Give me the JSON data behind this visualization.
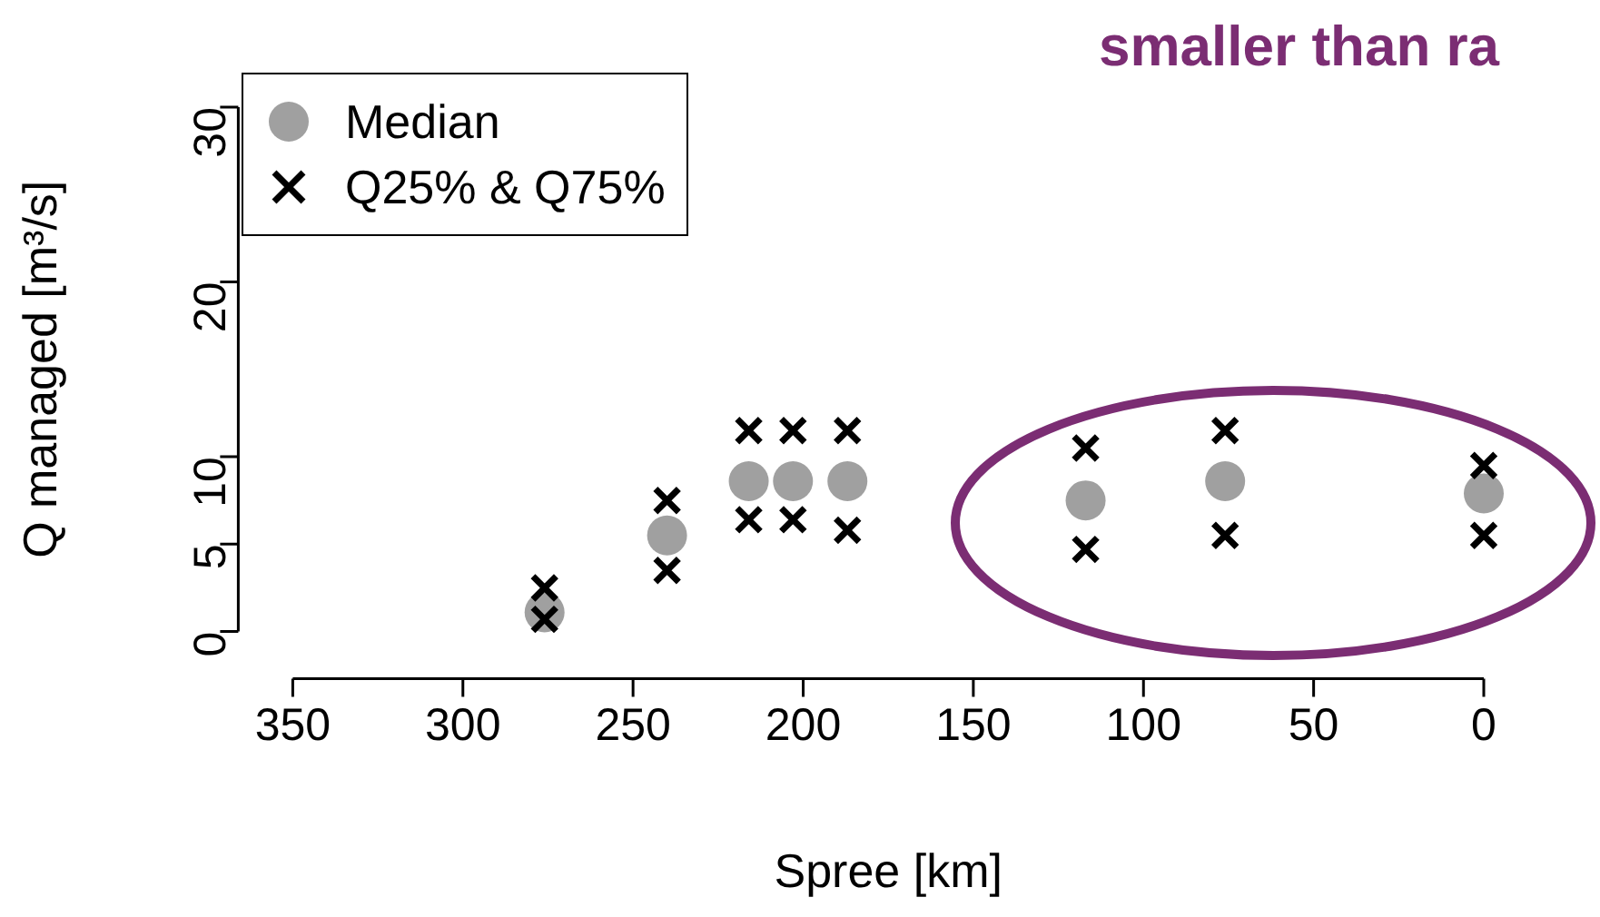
{
  "chart_data": {
    "type": "scatter",
    "xlabel": "Spree [km]",
    "ylabel": "Q managed [m³/s]",
    "annotations": [
      "smaller than ra"
    ],
    "xlim": [
      350,
      0
    ],
    "xticks": [
      350,
      300,
      250,
      200,
      150,
      100,
      50,
      0
    ],
    "ylim": [
      0,
      30
    ],
    "yticks": [
      0,
      5,
      10,
      20,
      30
    ],
    "legend": "top left",
    "grid": false,
    "series": [
      {
        "name": "Median",
        "color": "#a0a0a0",
        "marker": "circle",
        "x": [
          276,
          240,
          216,
          203,
          187,
          117,
          76,
          0
        ],
        "values": [
          1.1,
          5.5,
          8.6,
          8.6,
          8.6,
          7.5,
          8.6,
          7.9
        ]
      },
      {
        "name": "Q25% & Q75%",
        "color": "#000000",
        "marker": "cross",
        "x": [
          276,
          276,
          240,
          240,
          216,
          216,
          203,
          203,
          187,
          187,
          117,
          117,
          76,
          76,
          0,
          0
        ],
        "values": [
          2.5,
          0.7,
          7.5,
          3.5,
          11.5,
          6.4,
          11.5,
          6.4,
          11.5,
          5.8,
          10.5,
          4.7,
          11.5,
          5.5,
          9.5,
          5.5
        ]
      }
    ]
  }
}
